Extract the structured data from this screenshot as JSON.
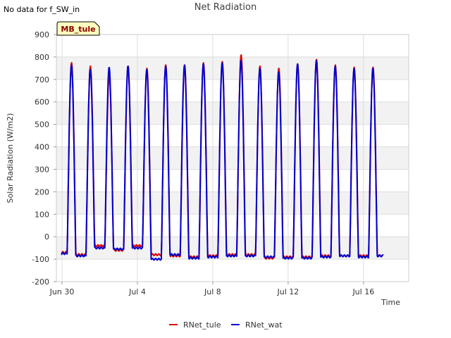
{
  "page": {
    "no_data_note": "No data for f_SW_in",
    "title": "Net Radiation"
  },
  "chart_data": {
    "type": "line",
    "title": "Net Radiation",
    "xlabel": "Time",
    "ylabel": "Solar Radiation (W/m2)",
    "ylim": [
      -200,
      900
    ],
    "yticks": [
      -200,
      -100,
      0,
      100,
      200,
      300,
      400,
      500,
      600,
      700,
      800,
      900
    ],
    "xlim_days": [
      -0.3,
      18.4
    ],
    "xtick_labels": [
      "Jun 30",
      "Jul 4",
      "Jul 8",
      "Jul 12",
      "Jul 16"
    ],
    "xtick_days": [
      0,
      4,
      8,
      12,
      16
    ],
    "grid": true,
    "band_color": "#f2f2f2",
    "badge": "MB_tule",
    "legend_position": "bottom-center",
    "series": [
      {
        "name": "RNet_tule",
        "color": "#dd0000",
        "daily_peaks": [
          775,
          760,
          720,
          760,
          750,
          765,
          765,
          775,
          780,
          810,
          760,
          750,
          770,
          790,
          765,
          755,
          755
        ],
        "night_values": [
          -70,
          -80,
          -40,
          -60,
          -40,
          -80,
          -85,
          -90,
          -85,
          -80,
          -80,
          -95,
          -90,
          -90,
          -85,
          -85,
          -85,
          -85
        ]
      },
      {
        "name": "RNet_wat",
        "color": "#0000cc",
        "daily_peaks": [
          765,
          745,
          755,
          760,
          745,
          760,
          765,
          770,
          775,
          785,
          750,
          735,
          770,
          785,
          760,
          750,
          750
        ],
        "night_values": [
          -75,
          -85,
          -50,
          -55,
          -50,
          -100,
          -80,
          -95,
          -90,
          -85,
          -85,
          -90,
          -95,
          -95,
          -90,
          -85,
          -90,
          -85
        ]
      }
    ]
  }
}
